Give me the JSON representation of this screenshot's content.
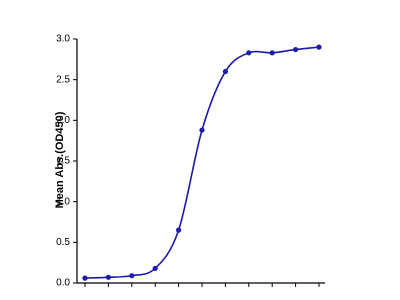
{
  "chart_data": {
    "type": "line",
    "y_label": "Mean Abs.(OD450)",
    "categories": [
      null,
      null,
      null,
      null,
      null,
      null,
      null,
      null,
      null,
      null,
      null
    ],
    "series": [
      {
        "color": "#1c1ca8",
        "values": [
          0.06,
          0.07,
          0.09,
          0.18,
          0.65,
          1.88,
          2.6,
          2.83,
          2.83,
          2.87,
          2.9
        ]
      }
    ],
    "ylim": [
      0,
      3
    ],
    "yticks": [
      {
        "value": 0,
        "label": "0.0"
      },
      {
        "value": 0.5,
        "label": "0.5"
      },
      {
        "value": 1,
        "label": "1.0"
      },
      {
        "value": 1.5,
        "label": "1.5"
      },
      {
        "value": 2,
        "label": "2.0"
      },
      {
        "value": 2.5,
        "label": "2.5"
      },
      {
        "value": 3,
        "label": "3.0"
      }
    ],
    "markers": true
  }
}
